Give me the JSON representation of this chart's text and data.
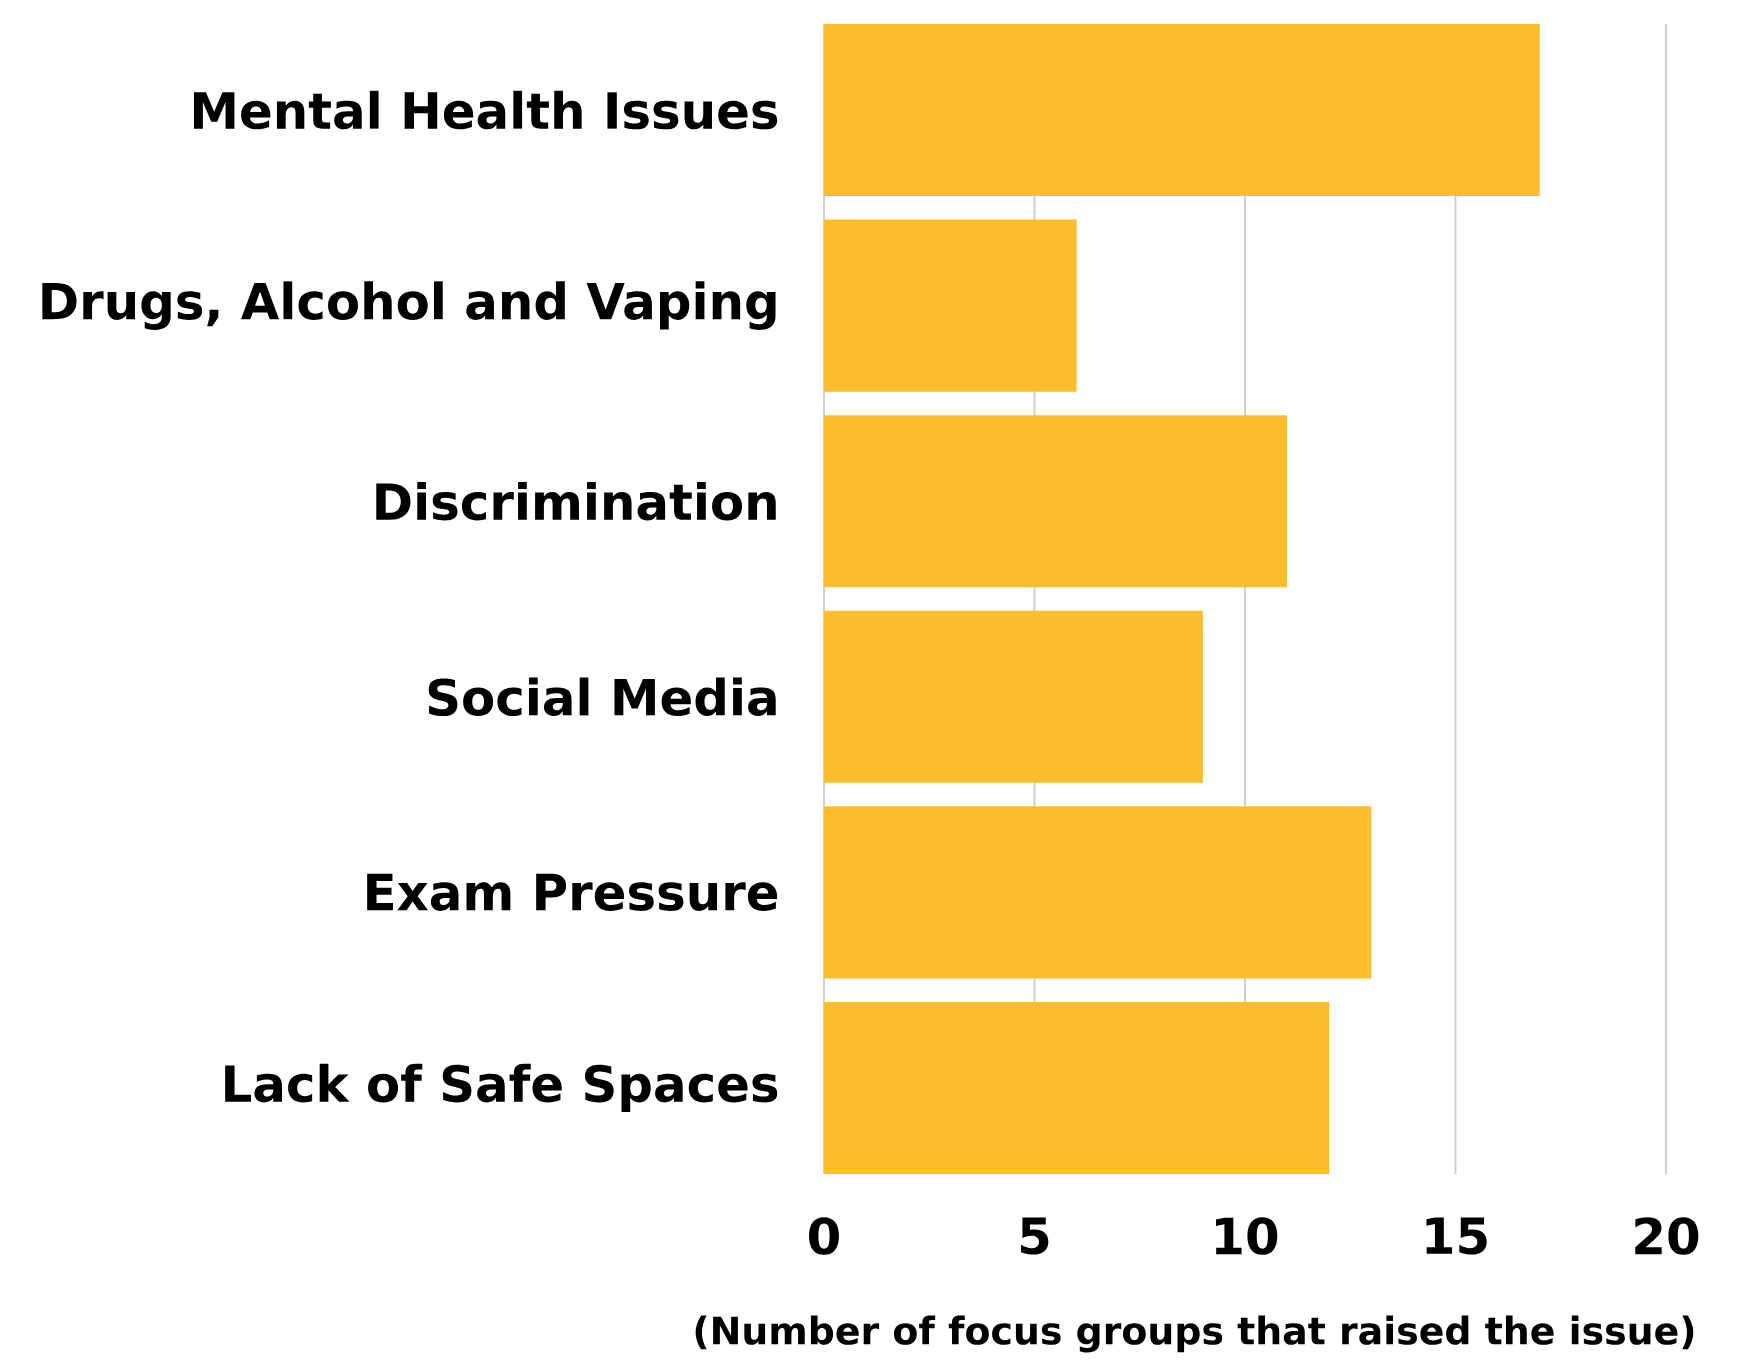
{
  "chart_data": {
    "type": "bar",
    "orientation": "horizontal",
    "categories": [
      "Mental Health Issues",
      "Drugs, Alcohol and Vaping",
      "Discrimination",
      "Social Media",
      "Exam Pressure",
      "Lack of Safe Spaces"
    ],
    "values": [
      17,
      6,
      11,
      9,
      13,
      12
    ],
    "color": "#fbbe2b",
    "xlabel": "(Number of focus groups that raised the issue)",
    "xlim": [
      0,
      20
    ],
    "xticks": [
      0,
      5,
      10,
      15,
      20
    ],
    "grid": "x"
  }
}
